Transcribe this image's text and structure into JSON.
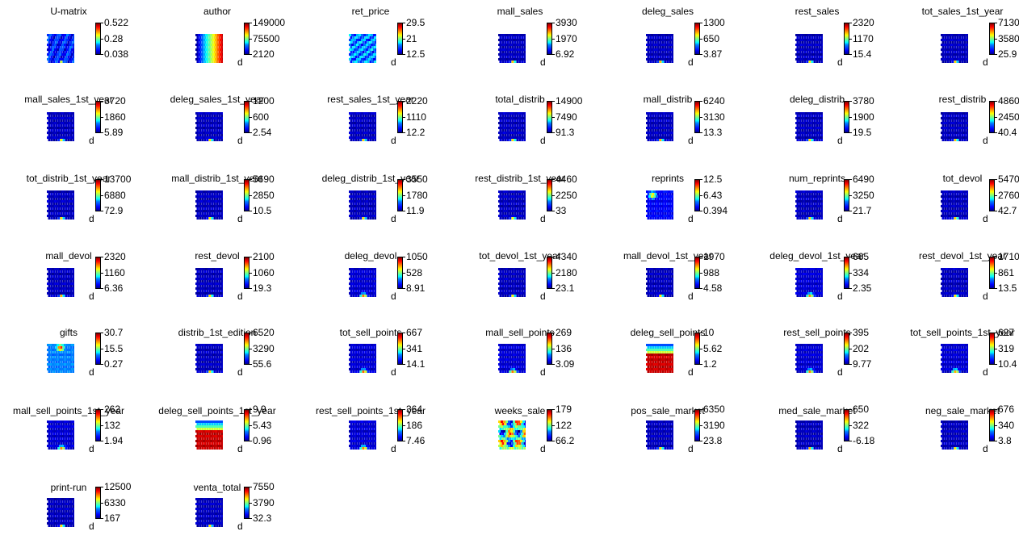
{
  "figure": {
    "colormap": "jet",
    "background": "#ffffff"
  },
  "chart_data": [
    {
      "type": "heatmap",
      "title": "U-matrix",
      "ticks": [
        "0.522",
        "0.28",
        "0.038"
      ],
      "pattern": "umatrix",
      "xlabel": ""
    },
    {
      "type": "heatmap",
      "title": "author",
      "ticks": [
        "149000",
        "75500",
        "2120"
      ],
      "pattern": "gradient",
      "xlabel": "d"
    },
    {
      "type": "heatmap",
      "title": "ret_price",
      "ticks": [
        "29.5",
        "21",
        "12.5"
      ],
      "pattern": "noisy",
      "xlabel": "d"
    },
    {
      "type": "heatmap",
      "title": "mall_sales",
      "ticks": [
        "3930",
        "1970",
        "6.92"
      ],
      "pattern": "spot",
      "xlabel": "d"
    },
    {
      "type": "heatmap",
      "title": "deleg_sales",
      "ticks": [
        "1300",
        "650",
        "3.87"
      ],
      "pattern": "spot",
      "xlabel": "d"
    },
    {
      "type": "heatmap",
      "title": "rest_sales",
      "ticks": [
        "2320",
        "1170",
        "15.4"
      ],
      "pattern": "spot",
      "xlabel": "d"
    },
    {
      "type": "heatmap",
      "title": "tot_sales_1st_year",
      "ticks": [
        "7130",
        "3580",
        "25.9"
      ],
      "pattern": "spot",
      "xlabel": "d"
    },
    {
      "type": "heatmap",
      "title": "mall_sales_1st_year",
      "ticks": [
        "3720",
        "1860",
        "5.89"
      ],
      "pattern": "spot",
      "xlabel": "d"
    },
    {
      "type": "heatmap",
      "title": "deleg_sales_1st_year",
      "ticks": [
        "1200",
        "600",
        "2.54"
      ],
      "pattern": "spot",
      "xlabel": "d"
    },
    {
      "type": "heatmap",
      "title": "rest_sales_1st_year",
      "ticks": [
        "2220",
        "1110",
        "12.2"
      ],
      "pattern": "spot",
      "xlabel": "d"
    },
    {
      "type": "heatmap",
      "title": "total_distrib",
      "ticks": [
        "14900",
        "7490",
        "91.3"
      ],
      "pattern": "spot",
      "xlabel": "d"
    },
    {
      "type": "heatmap",
      "title": "mall_distrib",
      "ticks": [
        "6240",
        "3130",
        "13.3"
      ],
      "pattern": "spot",
      "xlabel": "d"
    },
    {
      "type": "heatmap",
      "title": "deleg_distrib",
      "ticks": [
        "3780",
        "1900",
        "19.5"
      ],
      "pattern": "spot",
      "xlabel": "d"
    },
    {
      "type": "heatmap",
      "title": "rest_distrib",
      "ticks": [
        "4860",
        "2450",
        "40.4"
      ],
      "pattern": "spot",
      "xlabel": "d"
    },
    {
      "type": "heatmap",
      "title": "tot_distrib_1st_year",
      "ticks": [
        "13700",
        "6880",
        "72.9"
      ],
      "pattern": "spot",
      "xlabel": "d"
    },
    {
      "type": "heatmap",
      "title": "mall_distrib_1st_year",
      "ticks": [
        "5690",
        "2850",
        "10.5"
      ],
      "pattern": "spot",
      "xlabel": "d"
    },
    {
      "type": "heatmap",
      "title": "deleg_distrib_1st_year",
      "ticks": [
        "3550",
        "1780",
        "11.9"
      ],
      "pattern": "spot",
      "xlabel": "d"
    },
    {
      "type": "heatmap",
      "title": "rest_distrib_1st_year",
      "ticks": [
        "4460",
        "2250",
        "33"
      ],
      "pattern": "spot",
      "xlabel": "d"
    },
    {
      "type": "heatmap",
      "title": "reprints",
      "ticks": [
        "12.5",
        "6.43",
        "0.394"
      ],
      "pattern": "topspot",
      "xlabel": "d"
    },
    {
      "type": "heatmap",
      "title": "num_reprints",
      "ticks": [
        "6490",
        "3250",
        "21.7"
      ],
      "pattern": "spot",
      "xlabel": "d"
    },
    {
      "type": "heatmap",
      "title": "tot_devol",
      "ticks": [
        "5470",
        "2760",
        "42.7"
      ],
      "pattern": "spot",
      "xlabel": "d"
    },
    {
      "type": "heatmap",
      "title": "mall_devol",
      "ticks": [
        "2320",
        "1160",
        "6.36"
      ],
      "pattern": "spot",
      "xlabel": "d"
    },
    {
      "type": "heatmap",
      "title": "rest_devol",
      "ticks": [
        "2100",
        "1060",
        "19.3"
      ],
      "pattern": "spot",
      "xlabel": "d"
    },
    {
      "type": "heatmap",
      "title": "deleg_devol",
      "ticks": [
        "1050",
        "528",
        "8.91"
      ],
      "pattern": "spotwide",
      "xlabel": "d"
    },
    {
      "type": "heatmap",
      "title": "tot_devol_1st_year",
      "ticks": [
        "4340",
        "2180",
        "23.1"
      ],
      "pattern": "spot",
      "xlabel": "d"
    },
    {
      "type": "heatmap",
      "title": "mall_devol_1st_year",
      "ticks": [
        "1970",
        "988",
        "4.58"
      ],
      "pattern": "spot",
      "xlabel": "d"
    },
    {
      "type": "heatmap",
      "title": "deleg_devol_1st_year",
      "ticks": [
        "665",
        "334",
        "2.35"
      ],
      "pattern": "spotwide",
      "xlabel": "d"
    },
    {
      "type": "heatmap",
      "title": "rest_devol_1st_year",
      "ticks": [
        "1710",
        "861",
        "13.5"
      ],
      "pattern": "spot",
      "xlabel": "d"
    },
    {
      "type": "heatmap",
      "title": "gifts",
      "ticks": [
        "30.7",
        "15.5",
        "0.27"
      ],
      "pattern": "topspot2",
      "xlabel": "d"
    },
    {
      "type": "heatmap",
      "title": "distrib_1st_edition",
      "ticks": [
        "6520",
        "3290",
        "55.6"
      ],
      "pattern": "spot",
      "xlabel": "d"
    },
    {
      "type": "heatmap",
      "title": "tot_sell_points",
      "ticks": [
        "667",
        "341",
        "14.1"
      ],
      "pattern": "spotwide",
      "xlabel": "d"
    },
    {
      "type": "heatmap",
      "title": "mall_sell_points",
      "ticks": [
        "269",
        "136",
        "3.09"
      ],
      "pattern": "spotwide",
      "xlabel": "d"
    },
    {
      "type": "heatmap",
      "title": "deleg_sell_points",
      "ticks": [
        "10",
        "5.62",
        "1.2"
      ],
      "pattern": "bottomred",
      "xlabel": "d"
    },
    {
      "type": "heatmap",
      "title": "rest_sell_points",
      "ticks": [
        "395",
        "202",
        "9.77"
      ],
      "pattern": "spotwide",
      "xlabel": "d"
    },
    {
      "type": "heatmap",
      "title": "tot_sell_points_1st_year",
      "ticks": [
        "627",
        "319",
        "10.4"
      ],
      "pattern": "spotwide",
      "xlabel": "d"
    },
    {
      "type": "heatmap",
      "title": "mall_sell_points_1st_year",
      "ticks": [
        "262",
        "132",
        "1.94"
      ],
      "pattern": "spotwide",
      "xlabel": "d"
    },
    {
      "type": "heatmap",
      "title": "deleg_sell_points_1st_year",
      "ticks": [
        "9.9",
        "5.43",
        "0.96"
      ],
      "pattern": "bottomred",
      "xlabel": "d"
    },
    {
      "type": "heatmap",
      "title": "rest_sell_points_1st_year",
      "ticks": [
        "364",
        "186",
        "7.46"
      ],
      "pattern": "spotwide",
      "xlabel": "d"
    },
    {
      "type": "heatmap",
      "title": "weeks_sale",
      "ticks": [
        "179",
        "122",
        "66.2"
      ],
      "pattern": "mixed",
      "xlabel": "d"
    },
    {
      "type": "heatmap",
      "title": "pos_sale_market",
      "ticks": [
        "6350",
        "3190",
        "23.8"
      ],
      "pattern": "spot",
      "xlabel": "d"
    },
    {
      "type": "heatmap",
      "title": "med_sale_market",
      "ticks": [
        "650",
        "322",
        "-6.18"
      ],
      "pattern": "spot",
      "xlabel": "d"
    },
    {
      "type": "heatmap",
      "title": "neg_sale_market",
      "ticks": [
        "676",
        "340",
        "3.8"
      ],
      "pattern": "spot",
      "xlabel": "d"
    },
    {
      "type": "heatmap",
      "title": "print-run",
      "ticks": [
        "12500",
        "6330",
        "167"
      ],
      "pattern": "spot",
      "xlabel": "d"
    },
    {
      "type": "heatmap",
      "title": "venta_total",
      "ticks": [
        "7550",
        "3790",
        "32.3"
      ],
      "pattern": "spot",
      "xlabel": "d"
    }
  ]
}
